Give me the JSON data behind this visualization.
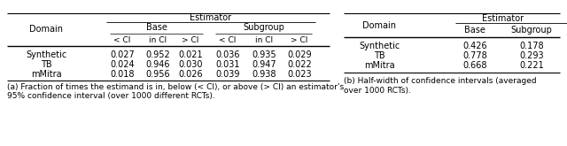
{
  "left_table": {
    "estimator_label": "Estimator",
    "domain_label": "Domain",
    "base_label": "Base",
    "subgroup_label": "Subgroup",
    "col_headers": [
      "< CI",
      "in CI",
      "> CI",
      "< CI",
      "in CI",
      "> CI"
    ],
    "rows": [
      [
        "Synthetic",
        "0.027",
        "0.952",
        "0.021",
        "0.036",
        "0.935",
        "0.029"
      ],
      [
        "TB",
        "0.024",
        "0.946",
        "0.030",
        "0.031",
        "0.947",
        "0.022"
      ],
      [
        "mMitra",
        "0.018",
        "0.956",
        "0.026",
        "0.039",
        "0.938",
        "0.023"
      ]
    ],
    "caption_line1": "(a) Fraction of times the estimand is in, below (< CI), or above (> CI) an estimator’s",
    "caption_line2": "95% confidence interval (over 1000 different RCTs)."
  },
  "right_table": {
    "estimator_label": "Estimator",
    "domain_label": "Domain",
    "col_headers": [
      "Base",
      "Subgroup"
    ],
    "rows": [
      [
        "Synthetic",
        "0.426",
        "0.178"
      ],
      [
        "TB",
        "0.778",
        "0.293"
      ],
      [
        "mMitra",
        "0.668",
        "0.221"
      ]
    ],
    "caption_line1": "(b) Half-width of confidence intervals (averaged",
    "caption_line2": "over 1000 RCTs)."
  },
  "fs": 7.0,
  "cfs": 6.5,
  "lc": "#000000",
  "bg": "#ffffff"
}
